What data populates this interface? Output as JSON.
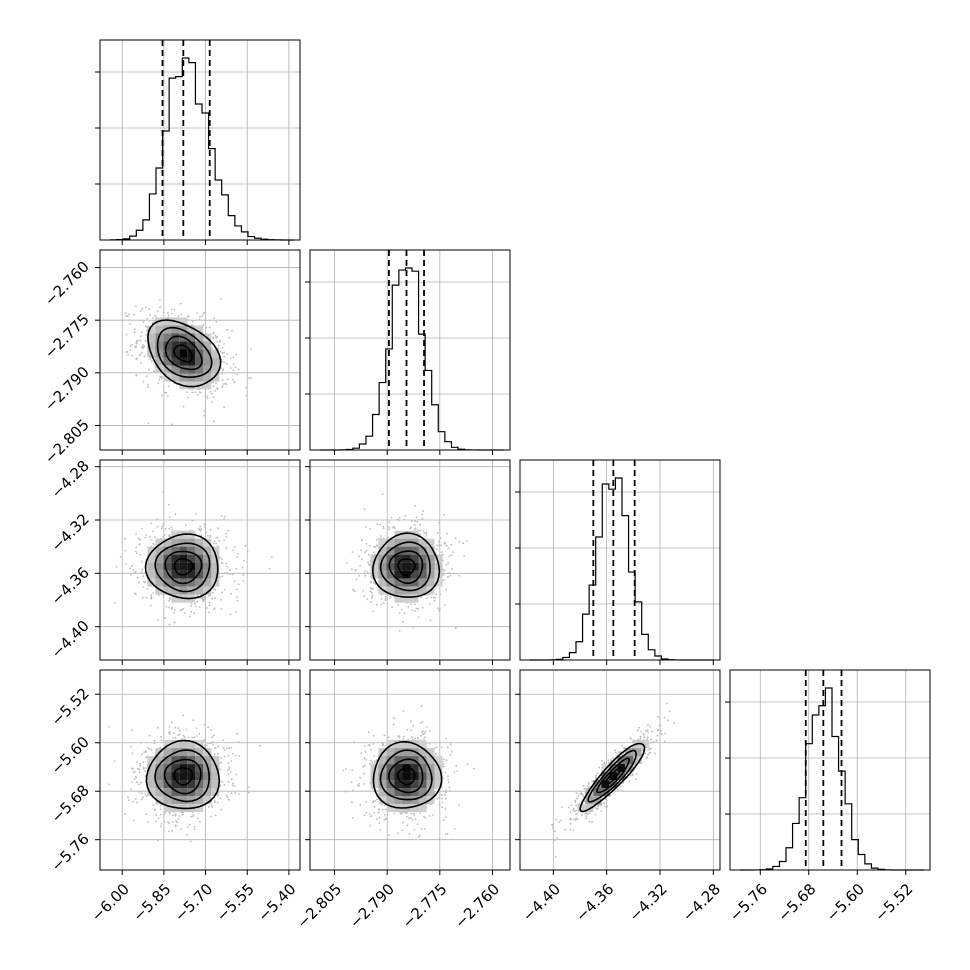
{
  "chart_data": {
    "type": "corner",
    "grid": true,
    "parameters": [
      {
        "range": [
          -6.08,
          -5.36
        ],
        "ticks": [
          -6.0,
          -5.85,
          -5.7,
          -5.55,
          -5.4
        ],
        "tick_labels": [
          "−6.00",
          "−5.85",
          "−5.70",
          "−5.55",
          "−5.40"
        ],
        "mean": -5.78,
        "sd": 0.065,
        "quantiles": [
          -5.855,
          -5.78,
          -5.685
        ]
      },
      {
        "range": [
          -2.812,
          -2.755
        ],
        "ticks": [
          -2.805,
          -2.79,
          -2.775,
          -2.76
        ],
        "tick_labels": [
          "−2.805",
          "−2.790",
          "−2.775",
          "−2.760"
        ],
        "mean": -2.7845,
        "sd": 0.0047,
        "quantiles": [
          -2.7895,
          -2.7845,
          -2.7795
        ]
      },
      {
        "range": [
          -4.425,
          -4.275
        ],
        "ticks": [
          -4.4,
          -4.36,
          -4.32,
          -4.28
        ],
        "tick_labels": [
          "−4.40",
          "−4.36",
          "−4.32",
          "−4.28"
        ],
        "mean": -4.355,
        "sd": 0.012,
        "quantiles": [
          -4.37,
          -4.355,
          -4.339
        ]
      },
      {
        "range": [
          -5.81,
          -5.48
        ],
        "ticks": [
          -5.76,
          -5.68,
          -5.6,
          -5.52
        ],
        "tick_labels": [
          "−5.76",
          "−5.68",
          "−5.60",
          "−5.52"
        ],
        "mean": -5.655,
        "sd": 0.028,
        "quantiles": [
          -5.685,
          -5.656,
          -5.626
        ]
      }
    ],
    "correlations": {
      "1,0": -0.35,
      "2,0": 0.0,
      "2,1": 0.0,
      "3,0": 0.0,
      "3,1": 0.0,
      "3,2": 0.9
    }
  }
}
